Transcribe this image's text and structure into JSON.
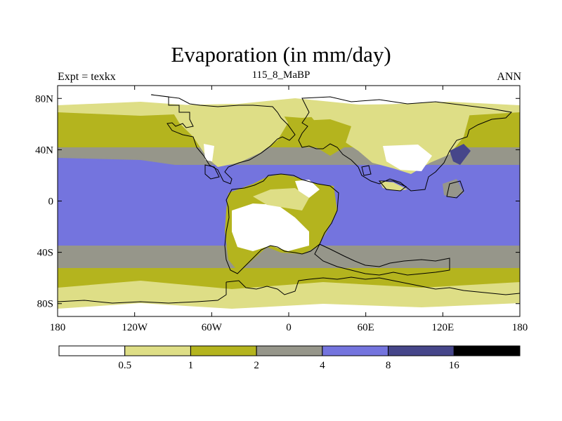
{
  "title": "Evaporation (in mm/day)",
  "subtitle_left": "Expt = texkx",
  "subtitle_center": "115_8_MaBP",
  "subtitle_right": "ANN",
  "map": {
    "lon_range": [
      -180,
      180
    ],
    "lat_range": [
      -90,
      90
    ],
    "lat_ticks": [
      {
        "value": 80,
        "label": "80N"
      },
      {
        "value": 40,
        "label": "40N"
      },
      {
        "value": 0,
        "label": "0"
      },
      {
        "value": -40,
        "label": "40S"
      },
      {
        "value": -80,
        "label": "80S"
      }
    ],
    "lon_ticks": [
      {
        "value": -180,
        "label": "180"
      },
      {
        "value": -120,
        "label": "120W"
      },
      {
        "value": -60,
        "label": "60W"
      },
      {
        "value": 0,
        "label": "0"
      },
      {
        "value": 60,
        "label": "60E"
      },
      {
        "value": 120,
        "label": "120E"
      },
      {
        "value": 180,
        "label": "180"
      }
    ]
  },
  "colorbar": {
    "colors": [
      "#ffffff",
      "#dede86",
      "#b4b41e",
      "#96968a",
      "#7474de",
      "#46468a",
      "#000000"
    ],
    "labels": [
      "0.5",
      "1",
      "2",
      "4",
      "8",
      "16"
    ]
  }
}
